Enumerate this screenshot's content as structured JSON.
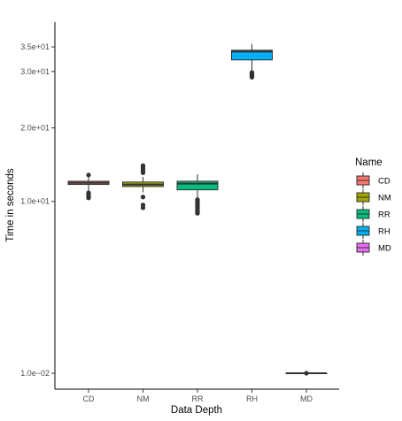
{
  "chart_data": {
    "type": "boxplot",
    "xlabel": "Data Depth",
    "ylabel": "Time in seconds",
    "y_ticks": [
      {
        "value": 0.01,
        "label": "1.0e−02"
      },
      {
        "value": 10,
        "label": "1.0e+01"
      },
      {
        "value": 20,
        "label": "2.0e+01"
      },
      {
        "value": 30,
        "label": "3.0e+01"
      },
      {
        "value": 35,
        "label": "3.5e+01"
      }
    ],
    "legend": {
      "title": "Name",
      "placement": "right",
      "entries": [
        "CD",
        "NM",
        "RR",
        "RH",
        "MD"
      ]
    },
    "categories": [
      "CD",
      "NM",
      "RR",
      "RH",
      "MD"
    ],
    "series": [
      {
        "name": "CD",
        "color": "#F8766D",
        "whisker_low": 11.0,
        "q1": 12.0,
        "median": 12.2,
        "q3": 12.4,
        "whisker_high": 13.1,
        "outliers": [
          10.4,
          10.5,
          10.6,
          10.7,
          10.8,
          10.9,
          11.0,
          13.2
        ]
      },
      {
        "name": "NM",
        "color": "#A3A500",
        "whisker_low": 11.05,
        "q1": 11.75,
        "median": 12.0,
        "q3": 12.3,
        "whisker_high": 12.95,
        "outliers": [
          9.3,
          9.6,
          10.5,
          13.5,
          13.8,
          14.05,
          14.3,
          14.45
        ]
      },
      {
        "name": "RR",
        "color": "#00BF7D",
        "whisker_low": 10.3,
        "q1": 11.35,
        "median": 12.1,
        "q3": 12.4,
        "whisker_high": 13.3,
        "outliers": [
          8.7,
          8.8,
          8.9,
          9.0,
          9.1,
          9.2,
          9.3,
          9.4,
          9.5,
          9.6,
          9.7,
          9.8,
          9.9,
          10.0,
          10.1,
          10.2
        ]
      },
      {
        "name": "RH",
        "color": "#00B0F6",
        "whisker_low": 30.0,
        "q1": 32.3,
        "median": 34.0,
        "q3": 34.3,
        "whisker_high": 35.6,
        "outliers": [
          28.9,
          29.0,
          29.1,
          29.2,
          29.3,
          29.4,
          29.5,
          29.6,
          29.7,
          29.8
        ]
      },
      {
        "name": "MD",
        "color": "#E76BF3",
        "whisker_low": 0.01,
        "q1": 0.01,
        "median": 0.01,
        "q3": 0.01,
        "whisker_high": 0.01,
        "outliers": [
          0.01
        ]
      }
    ],
    "grid": false
  }
}
